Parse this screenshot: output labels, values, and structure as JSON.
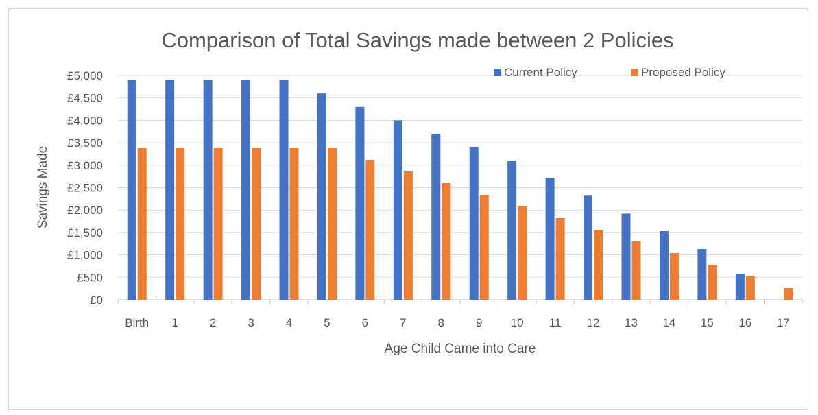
{
  "chart_data": {
    "type": "bar",
    "title": "Comparison of Total Savings made between 2 Policies",
    "xlabel": "Age Child Came into Care",
    "ylabel": "Savings Made",
    "categories": [
      "Birth",
      "1",
      "2",
      "3",
      "4",
      "5",
      "6",
      "7",
      "8",
      "9",
      "10",
      "11",
      "12",
      "13",
      "14",
      "15",
      "16",
      "17"
    ],
    "series": [
      {
        "name": "Current Policy",
        "color": "#4472C4",
        "values": [
          4900,
          4900,
          4900,
          4900,
          4900,
          4600,
          4300,
          4000,
          3700,
          3400,
          3100,
          2710,
          2320,
          1920,
          1530,
          1130,
          570,
          0
        ]
      },
      {
        "name": "Proposed Policy",
        "color": "#ED7D31",
        "values": [
          3380,
          3380,
          3380,
          3380,
          3380,
          3380,
          3120,
          2860,
          2600,
          2340,
          2080,
          1820,
          1560,
          1300,
          1040,
          780,
          520,
          260
        ]
      }
    ],
    "ylim": [
      0,
      5000
    ],
    "y_ticks": [
      "£0",
      "£500",
      "£1,000",
      "£1,500",
      "£2,000",
      "£2,500",
      "£3,000",
      "£3,500",
      "£4,000",
      "£4,500",
      "£5,000"
    ],
    "grid": true,
    "legend_position": "top-right"
  }
}
